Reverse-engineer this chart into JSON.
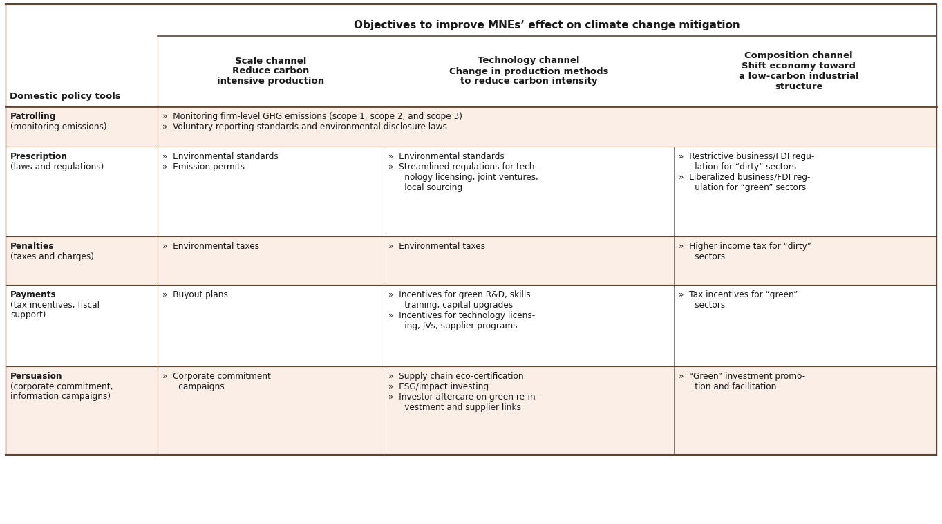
{
  "title": "Objectives to improve MNEs’ effect on climate change mitigation",
  "bg_color": "#ffffff",
  "row_bg_odd": "#faeee6",
  "row_bg_even": "#ffffff",
  "border_color": "#5a4632",
  "text_color": "#1a1a1a",
  "col0_header": "Domestic policy tools",
  "col1_header": "Scale channel\nReduce carbon\nintensive production",
  "col2_header": "Technology channel\nChange in production methods\nto reduce carbon intensity",
  "col3_header": "Composition channel\nShift economy toward\na low-carbon industrial\nstructure",
  "rows": [
    {
      "col0_bold": "Patrolling",
      "col0_normal": "(monitoring emissions)",
      "col1_span": true,
      "col1": "»  Monitoring firm-level GHG emissions (scope 1, scope 2, and scope 3)\n»  Voluntary reporting standards and environmental disclosure laws",
      "col2": "",
      "col3": ""
    },
    {
      "col0_bold": "Prescription",
      "col0_normal": "(laws and regulations)",
      "col1_span": false,
      "col1": "»  Environmental standards\n»  Emission permits",
      "col2": "»  Environmental standards\n»  Streamlined regulations for tech-\n      nology licensing, joint ventures,\n      local sourcing",
      "col3": "»  Restrictive business/FDI regu-\n      lation for “dirty” sectors\n»  Liberalized business/FDI reg-\n      ulation for “green” sectors"
    },
    {
      "col0_bold": "Penalties",
      "col0_normal": "(taxes and charges)",
      "col1_span": false,
      "col1": "»  Environmental taxes",
      "col2": "»  Environmental taxes",
      "col3": "»  Higher income tax for “dirty”\n      sectors"
    },
    {
      "col0_bold": "Payments",
      "col0_normal": "(tax incentives, fiscal\nsupport)",
      "col1_span": false,
      "col1": "»  Buyout plans",
      "col2": "»  Incentives for green R&D, skills\n      training, capital upgrades\n»  Incentives for technology licens-\n      ing, JVs, supplier programs",
      "col3": "»  Tax incentives for “green”\n      sectors"
    },
    {
      "col0_bold": "Persuasion",
      "col0_normal": "(corporate commitment,\ninformation campaigns)",
      "col1_span": false,
      "col1": "»  Corporate commitment\n      campaigns",
      "col2": "»  Supply chain eco-certification\n»  ESG/impact investing\n»  Investor aftercare on green re-in-\n      vestment and supplier links",
      "col3": "»  “Green” investment promo-\n      tion and facilitation"
    }
  ],
  "figsize": [
    13.63,
    7.58
  ],
  "dpi": 100
}
